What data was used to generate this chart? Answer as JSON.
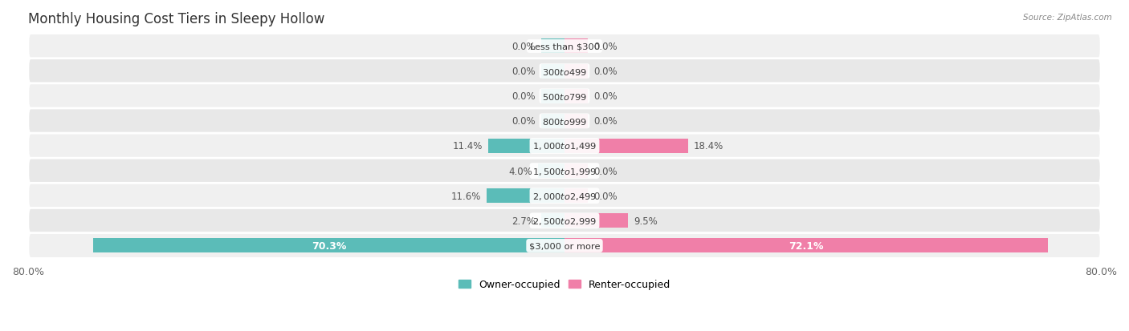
{
  "title": "Monthly Housing Cost Tiers in Sleepy Hollow",
  "source": "Source: ZipAtlas.com",
  "categories": [
    "Less than $300",
    "$300 to $499",
    "$500 to $799",
    "$800 to $999",
    "$1,000 to $1,499",
    "$1,500 to $1,999",
    "$2,000 to $2,499",
    "$2,500 to $2,999",
    "$3,000 or more"
  ],
  "owner_values": [
    0.0,
    0.0,
    0.0,
    0.0,
    11.4,
    4.0,
    11.6,
    2.7,
    70.3
  ],
  "renter_values": [
    0.0,
    0.0,
    0.0,
    0.0,
    18.4,
    0.0,
    0.0,
    9.5,
    72.1
  ],
  "owner_color": "#5bbcb8",
  "renter_color": "#f07fa8",
  "xlim_left": -80.0,
  "xlim_right": 80.0,
  "title_fontsize": 12,
  "legend_owner": "Owner-occupied",
  "legend_renter": "Renter-occupied",
  "stub_value": 3.5,
  "bar_height": 0.58
}
